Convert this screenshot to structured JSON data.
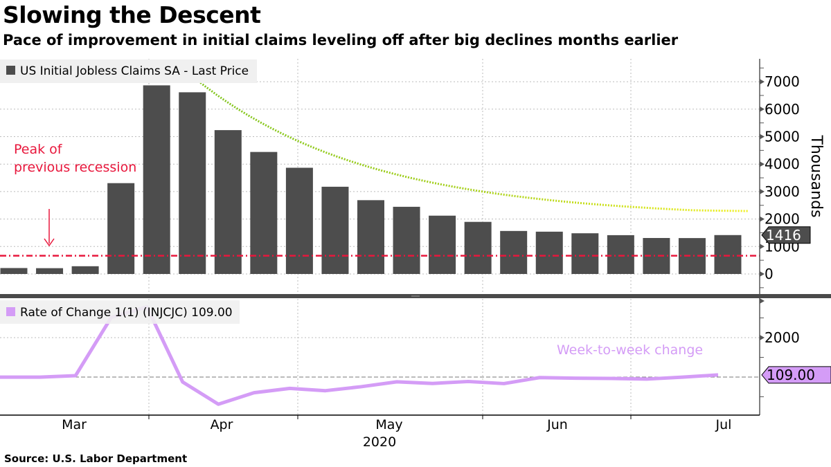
{
  "title": "Slowing the Descent",
  "subtitle": "Pace of improvement in initial claims leveling off after big declines months earlier",
  "source": "Source: U.S. Labor Department",
  "chart_data": [
    {
      "type": "bar",
      "legend": "US Initial Jobless Claims SA - Last Price",
      "ylabel": "Thousands",
      "ylim": [
        -700,
        7900
      ],
      "yticks": [
        "0",
        "1000",
        "2000",
        "3000",
        "4000",
        "5000",
        "6000",
        "7000"
      ],
      "values": [
        216,
        211,
        282,
        3307,
        6867,
        6615,
        5237,
        4442,
        3867,
        3176,
        2687,
        2446,
        2123,
        1897,
        1566,
        1540,
        1482,
        1413,
        1310,
        1307,
        1416
      ],
      "last_value_label": "1416",
      "reference_line": {
        "value": 665,
        "label": "Peak of\nprevious recession",
        "color": "#e8173c"
      },
      "trend_annotation": true,
      "bar_color": "#4d4d4d",
      "grid": true
    },
    {
      "type": "line",
      "legend": "Rate of Change 1(1) (INJCJC) 109.00",
      "annotation": "Week-to-week change",
      "yticks": [
        "2000"
      ],
      "ylim": [
        -1950,
        3900
      ],
      "values": [
        -4,
        -5,
        71,
        3025,
        3560,
        -252,
        -1378,
        -795,
        -575,
        -691,
        -489,
        -241,
        -323,
        -226,
        -331,
        -26,
        -58,
        -69,
        -103,
        -3,
        109
      ],
      "last_value_label": "109.00",
      "line_color": "#d49cf6"
    }
  ],
  "x_axis": {
    "months": [
      "Mar",
      "Apr",
      "May",
      "Jun",
      "Jul"
    ],
    "year": "2020"
  }
}
